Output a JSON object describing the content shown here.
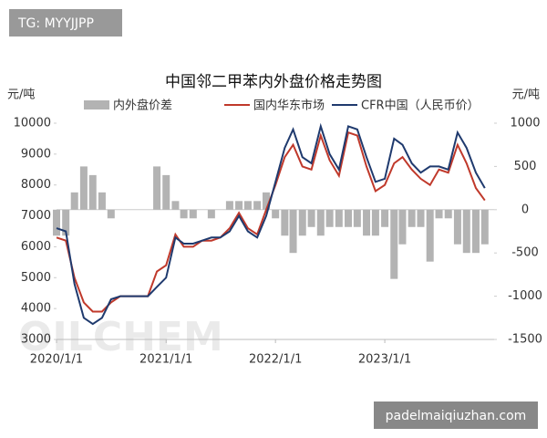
{
  "watermarks": {
    "top_left": "TG: MYYJJPP",
    "logo": "OILCHEM",
    "bottom_right": "padelmaiqiuzhan.com"
  },
  "chart_data": {
    "type": "line",
    "title": "中国邻二甲苯内外盘价格走势图",
    "y_label": "元/吨",
    "y2_label": "元/吨",
    "x": [
      "2020/1/1",
      "2020/2/1",
      "2020/3/1",
      "2020/4/1",
      "2020/5/1",
      "2020/6/1",
      "2020/7/1",
      "2020/8/1",
      "2020/9/1",
      "2020/10/1",
      "2020/11/1",
      "2020/12/1",
      "2021/1/1",
      "2021/2/1",
      "2021/3/1",
      "2021/4/1",
      "2021/5/1",
      "2021/6/1",
      "2021/7/1",
      "2021/8/1",
      "2021/9/1",
      "2021/10/1",
      "2021/11/1",
      "2021/12/1",
      "2022/1/1",
      "2022/2/1",
      "2022/3/1",
      "2022/4/1",
      "2022/5/1",
      "2022/6/1",
      "2022/7/1",
      "2022/8/1",
      "2022/9/1",
      "2022/10/1",
      "2022/11/1",
      "2022/12/1",
      "2023/1/1",
      "2023/2/1",
      "2023/3/1",
      "2023/4/1",
      "2023/5/1",
      "2023/6/1",
      "2023/7/1",
      "2023/8/1",
      "2023/9/1",
      "2023/10/1",
      "2023/11/1",
      "2023/12/1"
    ],
    "xlim": [
      "2020/1/1",
      "2024/1/1"
    ],
    "xticks": [
      "2020/1/1",
      "2021/1/1",
      "2022/1/1",
      "2023/1/1"
    ],
    "ylim": [
      3000,
      10000
    ],
    "yticks": [
      3000,
      4000,
      5000,
      6000,
      7000,
      8000,
      9000,
      10000
    ],
    "y2lim": [
      -1500,
      1000
    ],
    "y2ticks": [
      -1500,
      -1000,
      -500,
      0,
      500,
      1000
    ],
    "series": [
      {
        "name": "内外盘价差",
        "type": "bar",
        "axis": "y2",
        "color": "#b3b3b3",
        "values": [
          -300,
          -300,
          200,
          500,
          400,
          200,
          -100,
          0,
          0,
          0,
          0,
          500,
          400,
          100,
          -100,
          -100,
          0,
          -100,
          0,
          100,
          100,
          100,
          100,
          200,
          -100,
          -300,
          -500,
          -300,
          -200,
          -300,
          -200,
          -200,
          -200,
          -200,
          -300,
          -300,
          -200,
          -800,
          -400,
          -200,
          -200,
          -600,
          -100,
          -100,
          -400,
          -500,
          -500,
          -400
        ]
      },
      {
        "name": "国内华东市场",
        "type": "line",
        "color": "#c0392b",
        "values": [
          6300,
          6200,
          5000,
          4200,
          3900,
          3900,
          4200,
          4400,
          4400,
          4400,
          4400,
          5200,
          5400,
          6400,
          6000,
          6000,
          6200,
          6200,
          6300,
          6600,
          7100,
          6600,
          6400,
          7200,
          8000,
          8900,
          9300,
          8600,
          8500,
          9600,
          8800,
          8300,
          9700,
          9600,
          8600,
          7800,
          8000,
          8700,
          8900,
          8500,
          8200,
          8000,
          8500,
          8400,
          9300,
          8700,
          7900,
          7500
        ]
      },
      {
        "name": "CFR中国（人民币价）",
        "type": "line",
        "color": "#1f3a6e",
        "values": [
          6600,
          6500,
          4800,
          3700,
          3500,
          3700,
          4300,
          4400,
          4400,
          4400,
          4400,
          4700,
          5000,
          6300,
          6100,
          6100,
          6200,
          6300,
          6300,
          6500,
          7000,
          6500,
          6300,
          7000,
          8100,
          9200,
          9800,
          8900,
          8700,
          9900,
          9000,
          8500,
          9900,
          9800,
          8900,
          8100,
          8200,
          9500,
          9300,
          8700,
          8400,
          8600,
          8600,
          8500,
          9700,
          9200,
          8400,
          7900
        ]
      }
    ]
  }
}
